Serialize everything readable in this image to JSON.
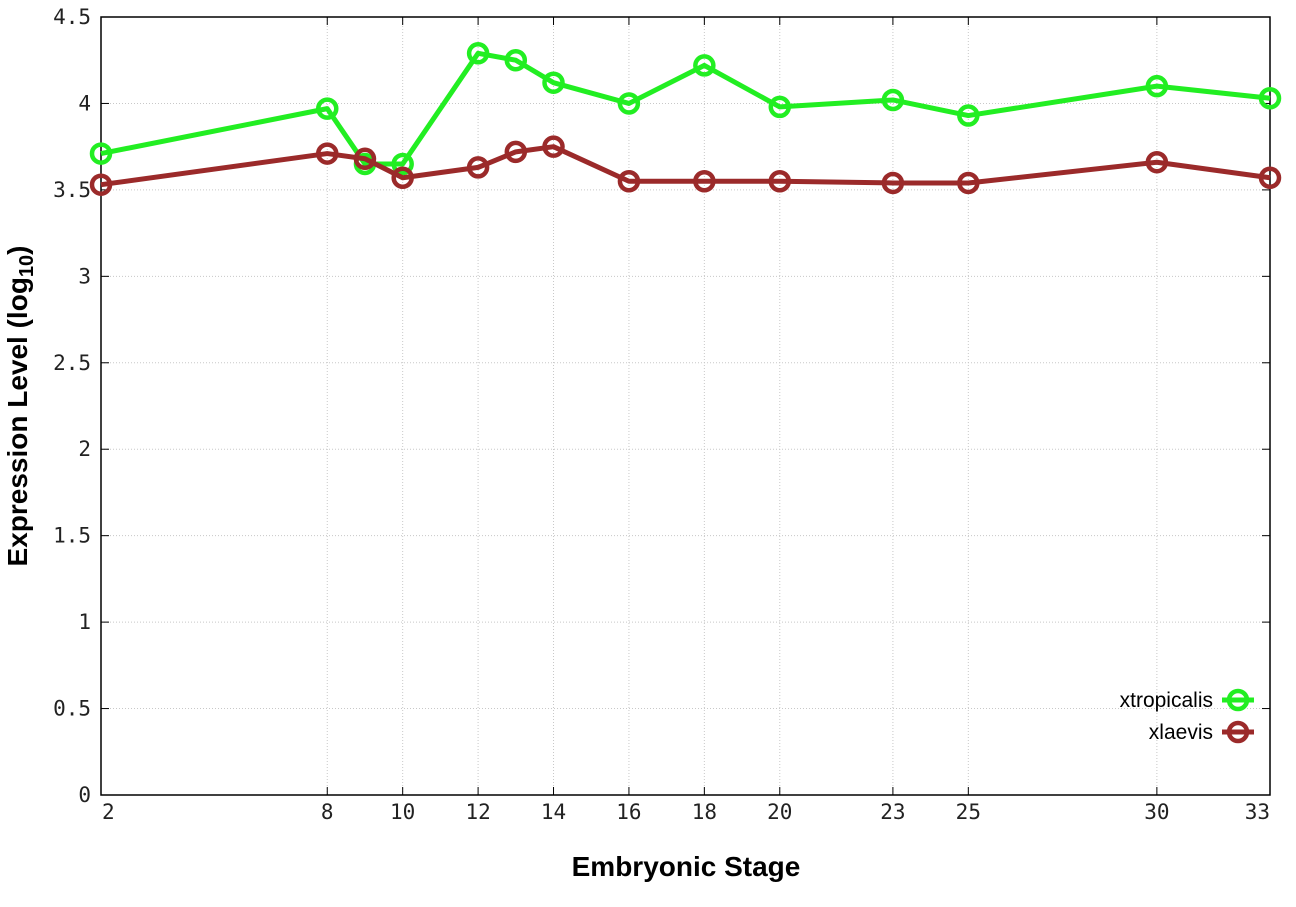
{
  "chart_data": {
    "type": "line",
    "x": [
      2,
      8,
      9,
      10,
      12,
      13,
      14,
      16,
      18,
      20,
      23,
      25,
      30,
      33
    ],
    "xticks": [
      2,
      8,
      10,
      12,
      14,
      16,
      18,
      20,
      23,
      25,
      30,
      33
    ],
    "xtick_labels": [
      "2",
      "8",
      "10",
      "12",
      "14",
      "16",
      "18",
      "20",
      "23",
      "25",
      "30",
      "33"
    ],
    "yticks": [
      0,
      0.5,
      1,
      1.5,
      2,
      2.5,
      3,
      3.5,
      4,
      4.5
    ],
    "ytick_labels": [
      "0",
      "0.5",
      "1",
      "1.5",
      "2",
      "2.5",
      "3",
      "3.5",
      "4",
      "4.5"
    ],
    "xlim": [
      2,
      33
    ],
    "ylim": [
      0,
      4.5
    ],
    "xlabel": "Embryonic Stage",
    "ylabel_main": "Expression Level (log",
    "ylabel_sub": "10",
    "ylabel_close": ")",
    "grid": true,
    "legend_position": "bottom-right",
    "series": [
      {
        "name": "xtropicalis",
        "color": "#22ee22",
        "values": [
          3.71,
          3.97,
          3.65,
          3.65,
          4.29,
          4.25,
          4.12,
          4.0,
          4.22,
          3.98,
          4.02,
          3.93,
          4.1,
          4.03
        ]
      },
      {
        "name": "xlaevis",
        "color": "#9b2a2a",
        "values": [
          3.53,
          3.71,
          3.68,
          3.57,
          3.63,
          3.72,
          3.75,
          3.55,
          3.55,
          3.55,
          3.54,
          3.54,
          3.66,
          3.57
        ]
      }
    ]
  }
}
